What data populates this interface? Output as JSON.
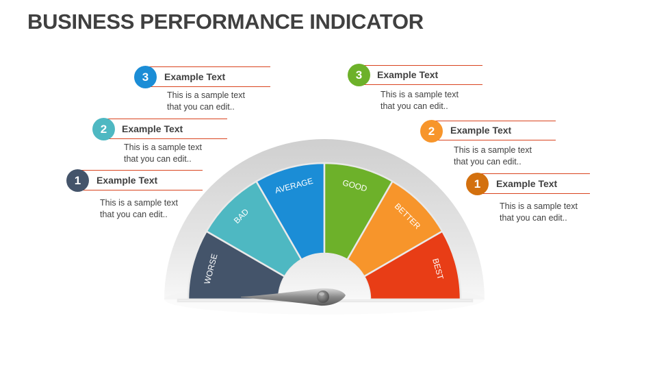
{
  "slide": {
    "title": "BUSINESS PERFORMANCE INDICATOR",
    "accent_line_color": "#d9431e",
    "text_color": "#404040"
  },
  "gauge": {
    "segments": [
      {
        "label": "WORSE",
        "color": "#44546a"
      },
      {
        "label": "BAD",
        "color": "#4eb8c2"
      },
      {
        "label": "AVERAGE",
        "color": "#1b8dd6"
      },
      {
        "label": "GOOD",
        "color": "#6db12a"
      },
      {
        "label": "BETTER",
        "color": "#f7952b"
      },
      {
        "label": "BEST",
        "color": "#e83d16"
      }
    ],
    "needle_pointing_to": "WORSE"
  },
  "callouts_left": [
    {
      "number": "3",
      "color": "#1b8dd6",
      "title": "Example Text",
      "desc_line1": "This is a sample text",
      "desc_line2": "that you can edit.."
    },
    {
      "number": "2",
      "color": "#4eb8c2",
      "title": "Example Text",
      "desc_line1": "This is a sample text",
      "desc_line2": "that you can edit.."
    },
    {
      "number": "1",
      "color": "#44546a",
      "title": "Example Text",
      "desc_line1": "This is a sample text",
      "desc_line2": "that you can edit.."
    }
  ],
  "callouts_right": [
    {
      "number": "3",
      "color": "#6db12a",
      "title": "Example Text",
      "desc_line1": "This is a sample text",
      "desc_line2": "that you can edit.."
    },
    {
      "number": "2",
      "color": "#f7952b",
      "title": "Example Text",
      "desc_line1": "This is a sample text",
      "desc_line2": "that you can edit.."
    },
    {
      "number": "1",
      "color": "#d3700e",
      "title": "Example Text",
      "desc_line1": "This is a sample text",
      "desc_line2": "that you can edit.."
    }
  ]
}
